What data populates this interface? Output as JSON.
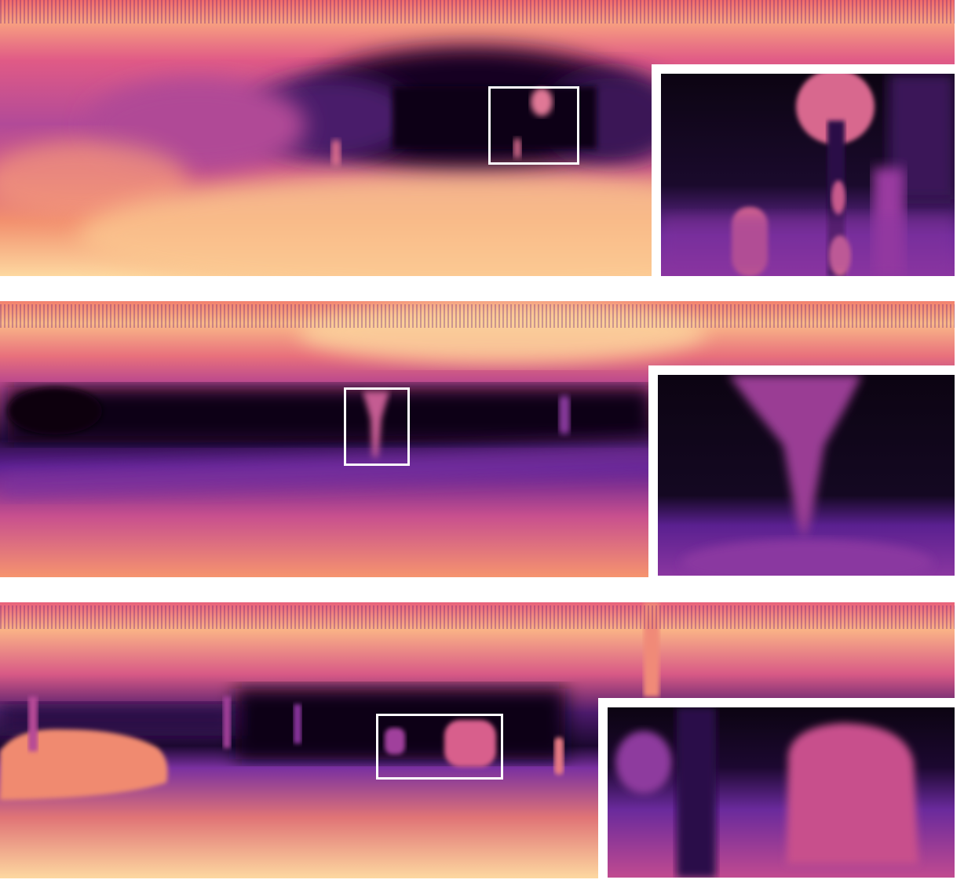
{
  "figure": {
    "colormap": "magma",
    "colors": {
      "near": "#fcd8a4",
      "mid": "#e8697a",
      "far": "#9b3a8f",
      "farthest": "#0e0516",
      "frame": "#ffffff"
    },
    "rows": [
      {
        "id": "row-1",
        "zoom_frame": "white"
      },
      {
        "id": "row-2",
        "zoom_frame": "white"
      },
      {
        "id": "row-3",
        "zoom_frame": "white"
      }
    ]
  }
}
